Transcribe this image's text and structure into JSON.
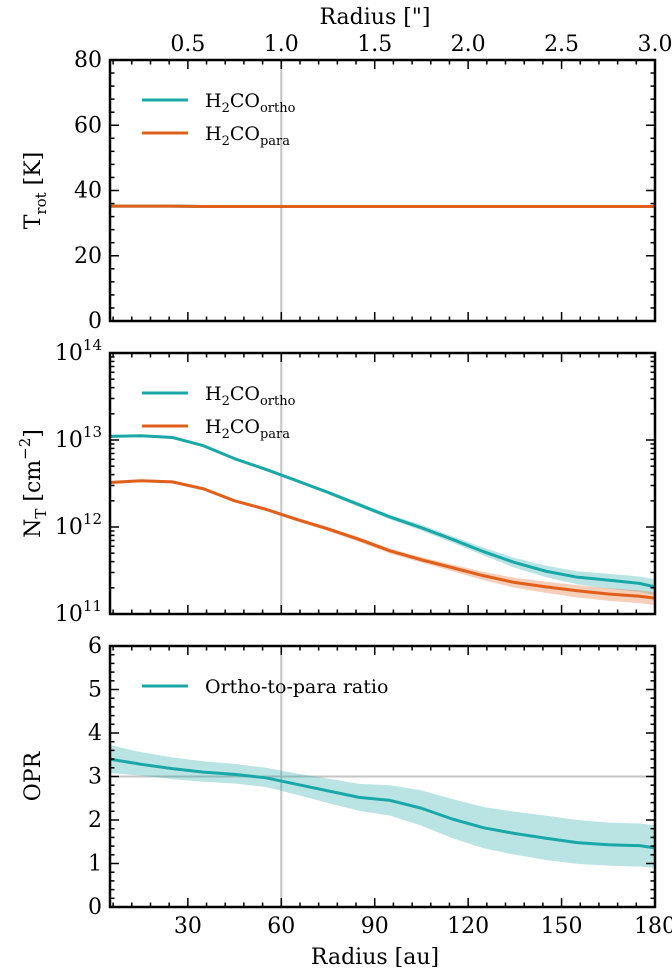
{
  "figure": {
    "top_axis_label": "Radius [\"]",
    "bottom_axis_label": "Radius [au]"
  },
  "colors": {
    "ortho": "#1aa7a7",
    "para": "#e0601b",
    "reference_line": "#c4c4c4"
  },
  "chart_data": [
    {
      "type": "line",
      "panel": "top",
      "ylabel": "T_rot [K]",
      "ylabel_parts": {
        "main": "T",
        "sub": "rot",
        "unit": " [K]"
      },
      "xlim": [
        5,
        180
      ],
      "ylim": [
        0,
        80
      ],
      "yscale": "linear",
      "yticks": [
        0,
        20,
        40,
        60,
        80
      ],
      "ytick_labels": [
        "0",
        "20",
        "40",
        "60",
        "80"
      ],
      "secondary_xaxis": {
        "label": "Radius [\"]",
        "ticks": [
          0.5,
          1.0,
          1.5,
          2.0,
          2.5,
          3.0
        ],
        "tick_labels": [
          "0.5",
          "1.0",
          "1.5",
          "2.0",
          "2.5",
          "3.0"
        ],
        "au_per_arcsec": 60
      },
      "legend": {
        "placement": "upper-left",
        "entries": [
          {
            "series": 0,
            "main": "H",
            "sub1": "2",
            "mid": "CO",
            "sub2": "ortho"
          },
          {
            "series": 1,
            "main": "H",
            "sub1": "2",
            "mid": "CO",
            "sub2": "para"
          }
        ]
      },
      "vline": 60,
      "series": [
        {
          "name": "H2CO_ortho",
          "color_key": "ortho",
          "x": [
            5,
            15,
            25,
            35,
            45,
            55,
            65,
            75,
            85,
            95,
            105,
            115,
            125,
            135,
            145,
            155,
            165,
            175,
            180
          ],
          "y": [
            35.2,
            35.2,
            35.2,
            35.1,
            35.1,
            35.1,
            35.1,
            35.1,
            35.1,
            35.1,
            35.1,
            35.1,
            35.1,
            35.1,
            35.1,
            35.1,
            35.1,
            35.1,
            35.1
          ]
        },
        {
          "name": "H2CO_para",
          "color_key": "para",
          "x": [
            5,
            15,
            25,
            35,
            45,
            55,
            65,
            75,
            85,
            95,
            105,
            115,
            125,
            135,
            145,
            155,
            165,
            175,
            180
          ],
          "y": [
            35.2,
            35.2,
            35.2,
            35.1,
            35.1,
            35.1,
            35.1,
            35.1,
            35.1,
            35.1,
            35.1,
            35.1,
            35.1,
            35.1,
            35.1,
            35.1,
            35.1,
            35.1,
            35.1
          ]
        }
      ]
    },
    {
      "type": "line",
      "panel": "middle",
      "ylabel": "N_T [cm^-2]",
      "ylabel_parts": {
        "main": "N",
        "sub": "T",
        "unit_pre": " [cm",
        "sup": "−2",
        "unit_post": "]"
      },
      "xlim": [
        5,
        180
      ],
      "ylim": [
        100000000000.0,
        100000000000000.0
      ],
      "yscale": "log",
      "yticks": [
        100000000000.0,
        1000000000000.0,
        10000000000000.0,
        100000000000000.0
      ],
      "ytick_labels": [
        {
          "base": "10",
          "exp": "11"
        },
        {
          "base": "10",
          "exp": "12"
        },
        {
          "base": "10",
          "exp": "13"
        },
        {
          "base": "10",
          "exp": "14"
        }
      ],
      "legend": {
        "placement": "upper-left",
        "entries": [
          {
            "series": 0,
            "main": "H",
            "sub1": "2",
            "mid": "CO",
            "sub2": "ortho"
          },
          {
            "series": 1,
            "main": "H",
            "sub1": "2",
            "mid": "CO",
            "sub2": "para"
          }
        ]
      },
      "vline": 60,
      "series": [
        {
          "name": "H2CO_ortho",
          "color_key": "ortho",
          "x": [
            5,
            15,
            25,
            35,
            45,
            55,
            65,
            75,
            85,
            95,
            105,
            115,
            125,
            135,
            145,
            155,
            165,
            175,
            180
          ],
          "y": [
            11000000000000.0,
            11200000000000.0,
            10700000000000.0,
            8600000000000.0,
            6100000000000.0,
            4600000000000.0,
            3400000000000.0,
            2500000000000.0,
            1800000000000.0,
            1300000000000.0,
            980000000000.0,
            720000000000.0,
            520000000000.0,
            390000000000.0,
            310000000000.0,
            265000000000.0,
            245000000000.0,
            225000000000.0,
            205000000000.0
          ],
          "y_lower": [
            10600000000000.0,
            10800000000000.0,
            10300000000000.0,
            8300000000000.0,
            5900000000000.0,
            4400000000000.0,
            3250000000000.0,
            2380000000000.0,
            1700000000000.0,
            1220000000000.0,
            910000000000.0,
            660000000000.0,
            470000000000.0,
            340000000000.0,
            265000000000.0,
            220000000000.0,
            195000000000.0,
            180000000000.0,
            165000000000.0
          ],
          "y_upper": [
            11400000000000.0,
            11600000000000.0,
            11100000000000.0,
            8900000000000.0,
            6300000000000.0,
            4800000000000.0,
            3550000000000.0,
            2620000000000.0,
            1900000000000.0,
            1380000000000.0,
            1060000000000.0,
            780000000000.0,
            580000000000.0,
            440000000000.0,
            360000000000.0,
            310000000000.0,
            290000000000.0,
            270000000000.0,
            250000000000.0
          ]
        },
        {
          "name": "H2CO_para",
          "color_key": "para",
          "x": [
            5,
            15,
            25,
            35,
            45,
            55,
            65,
            75,
            85,
            95,
            105,
            115,
            125,
            135,
            145,
            155,
            165,
            175,
            180
          ],
          "y": [
            3250000000000.0,
            3400000000000.0,
            3300000000000.0,
            2750000000000.0,
            2000000000000.0,
            1600000000000.0,
            1220000000000.0,
            950000000000.0,
            720000000000.0,
            530000000000.0,
            420000000000.0,
            340000000000.0,
            275000000000.0,
            230000000000.0,
            205000000000.0,
            185000000000.0,
            170000000000.0,
            160000000000.0,
            152000000000.0
          ],
          "y_lower": [
            3120000000000.0,
            3270000000000.0,
            3170000000000.0,
            2640000000000.0,
            1920000000000.0,
            1530000000000.0,
            1160000000000.0,
            900000000000.0,
            675000000000.0,
            495000000000.0,
            390000000000.0,
            310000000000.0,
            245000000000.0,
            200000000000.0,
            175000000000.0,
            155000000000.0,
            142000000000.0,
            133000000000.0,
            127000000000.0
          ],
          "y_upper": [
            3380000000000.0,
            3530000000000.0,
            3430000000000.0,
            2860000000000.0,
            2080000000000.0,
            1670000000000.0,
            1280000000000.0,
            1000000000000.0,
            765000000000.0,
            565000000000.0,
            450000000000.0,
            370000000000.0,
            305000000000.0,
            260000000000.0,
            235000000000.0,
            215000000000.0,
            198000000000.0,
            187000000000.0,
            177000000000.0
          ]
        }
      ]
    },
    {
      "type": "line",
      "panel": "bottom",
      "ylabel": "OPR",
      "xlabel": "Radius [au]",
      "xlim": [
        5,
        180
      ],
      "ylim": [
        0,
        6
      ],
      "yscale": "linear",
      "xticks": [
        30,
        60,
        90,
        120,
        150,
        180
      ],
      "xtick_labels": [
        "30",
        "60",
        "90",
        "120",
        "150",
        "180"
      ],
      "yticks": [
        0,
        1,
        2,
        3,
        4,
        5,
        6
      ],
      "ytick_labels": [
        "0",
        "1",
        "2",
        "3",
        "4",
        "5",
        "6"
      ],
      "legend": {
        "placement": "upper-left",
        "entries": [
          {
            "series": 0,
            "label": "Ortho-to-para ratio"
          }
        ]
      },
      "vline": 60,
      "hline": 3,
      "series": [
        {
          "name": "Ortho-to-para ratio",
          "color_key": "ortho",
          "x": [
            5,
            15,
            25,
            35,
            45,
            55,
            65,
            75,
            85,
            95,
            105,
            115,
            125,
            135,
            145,
            155,
            165,
            175,
            180
          ],
          "y": [
            3.4,
            3.28,
            3.18,
            3.1,
            3.05,
            2.97,
            2.82,
            2.67,
            2.52,
            2.45,
            2.27,
            2.02,
            1.82,
            1.69,
            1.58,
            1.48,
            1.43,
            1.41,
            1.36
          ],
          "y_lower": [
            3.08,
            3.02,
            2.94,
            2.88,
            2.84,
            2.76,
            2.58,
            2.39,
            2.21,
            2.1,
            1.87,
            1.58,
            1.35,
            1.2,
            1.08,
            0.99,
            0.95,
            0.93,
            0.9
          ],
          "y_upper": [
            3.72,
            3.56,
            3.44,
            3.35,
            3.29,
            3.2,
            3.07,
            2.95,
            2.83,
            2.8,
            2.68,
            2.48,
            2.3,
            2.19,
            2.1,
            2.0,
            1.94,
            1.92,
            1.88
          ]
        }
      ]
    }
  ]
}
